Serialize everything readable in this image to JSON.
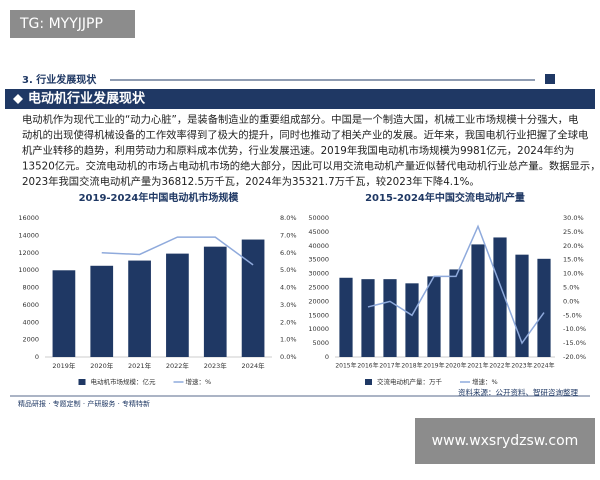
{
  "watermark_top": "TG: MYYJJPP",
  "section": "3. 行业发展现状",
  "heading": "电动机行业发展现状",
  "body": [
    "电动机作为现代工业的“动力心脏”，是装备制造业的重要组成部分。中国是一个制造大国，机械工业市场规模十分强大，电",
    "动机的出现使得机械设备的工作效率得到了极大的提升，同时也推动了相关产业的发展。近年来，我国电机行业把握了全球电",
    "机产业转移的趋势，利用劳动力和原料成本优势，行业发展迅速。2019年我国电动机市场规模为9981亿元，2024年约为",
    "13520亿元。交流电动机的市场占电动机市场的绝大部分，因此可以用交流电动机产量近似替代电动机行业总产量。数据显示，",
    "2023年我国交流电动机产量为36812.5万千瓦，2024年为35321.7万千瓦，较2023年下降4.1%。"
  ],
  "chart_data": [
    {
      "type": "bar",
      "title": "2019-2024年中国电动机市场规模",
      "categories": [
        "2019年",
        "2020年",
        "2021年",
        "2022年",
        "2023年",
        "2024年"
      ],
      "series": [
        {
          "name": "电动机市场规模：亿元",
          "color": "#1f3864",
          "values": [
            9981,
            10500,
            11100,
            11900,
            12700,
            13520
          ]
        },
        {
          "name": "增速：%",
          "color": "#8faadc",
          "axis": "y2",
          "type": "line",
          "values": [
            null,
            6.0,
            5.9,
            6.9,
            6.9,
            5.3
          ]
        }
      ],
      "ylim": [
        0,
        16000
      ],
      "yticks": [
        0,
        2000,
        4000,
        6000,
        8000,
        10000,
        12000,
        14000,
        16000
      ],
      "y2lim": [
        0,
        8
      ],
      "y2ticks": [
        {
          "value": 0,
          "label": "0.0%"
        },
        {
          "value": 1,
          "label": "1.0%"
        },
        {
          "value": 2,
          "label": "2.0%"
        },
        {
          "value": 3,
          "label": "3.0%"
        },
        {
          "value": 4,
          "label": "4.0%"
        },
        {
          "value": 5,
          "label": "5.0%"
        },
        {
          "value": 6,
          "label": "6.0%"
        },
        {
          "value": 7,
          "label": "7.0%"
        },
        {
          "value": 8,
          "label": "8.0%"
        }
      ],
      "legend": "bottom"
    },
    {
      "type": "bar",
      "title": "2015-2024年中国交流电动机产量",
      "categories": [
        "2015年",
        "2016年",
        "2017年",
        "2018年",
        "2019年",
        "2020年",
        "2021年",
        "2022年",
        "2023年",
        "2024年"
      ],
      "series": [
        {
          "name": "交流电动机产量：万千",
          "color": "#1f3864",
          "values": [
            28500,
            28000,
            28000,
            26500,
            29000,
            31500,
            40500,
            43000,
            36812.5,
            35321.7
          ]
        },
        {
          "name": "增速：%",
          "color": "#8faadc",
          "axis": "y2",
          "type": "line",
          "values": [
            null,
            -2,
            0,
            -5,
            9,
            9,
            27,
            6,
            -15,
            -4
          ]
        }
      ],
      "ylim": [
        0,
        50000
      ],
      "yticks": [
        0,
        5000,
        10000,
        15000,
        20000,
        25000,
        30000,
        35000,
        40000,
        45000,
        50000
      ],
      "y2lim": [
        -20,
        30
      ],
      "y2ticks": [
        {
          "value": -20,
          "label": "-20.0%"
        },
        {
          "value": -15,
          "label": "-15.0%"
        },
        {
          "value": -10,
          "label": "-10.0%"
        },
        {
          "value": -5,
          "label": "-5.0%"
        },
        {
          "value": 0,
          "label": "0.0%"
        },
        {
          "value": 5,
          "label": "5.0%"
        },
        {
          "value": 10,
          "label": "10.0%"
        },
        {
          "value": 15,
          "label": "15.0%"
        },
        {
          "value": 20,
          "label": "20.0%"
        },
        {
          "value": 25,
          "label": "25.0%"
        },
        {
          "value": 30,
          "label": "30.0%"
        }
      ],
      "legend": "bottom"
    }
  ],
  "footer_left": "精品研报 · 专题定制 · 产研服务 · 专精特新",
  "source": "资料来源：公开资料、智研咨询整理",
  "watermark_bottom": "www.wxsrydzsw.com"
}
